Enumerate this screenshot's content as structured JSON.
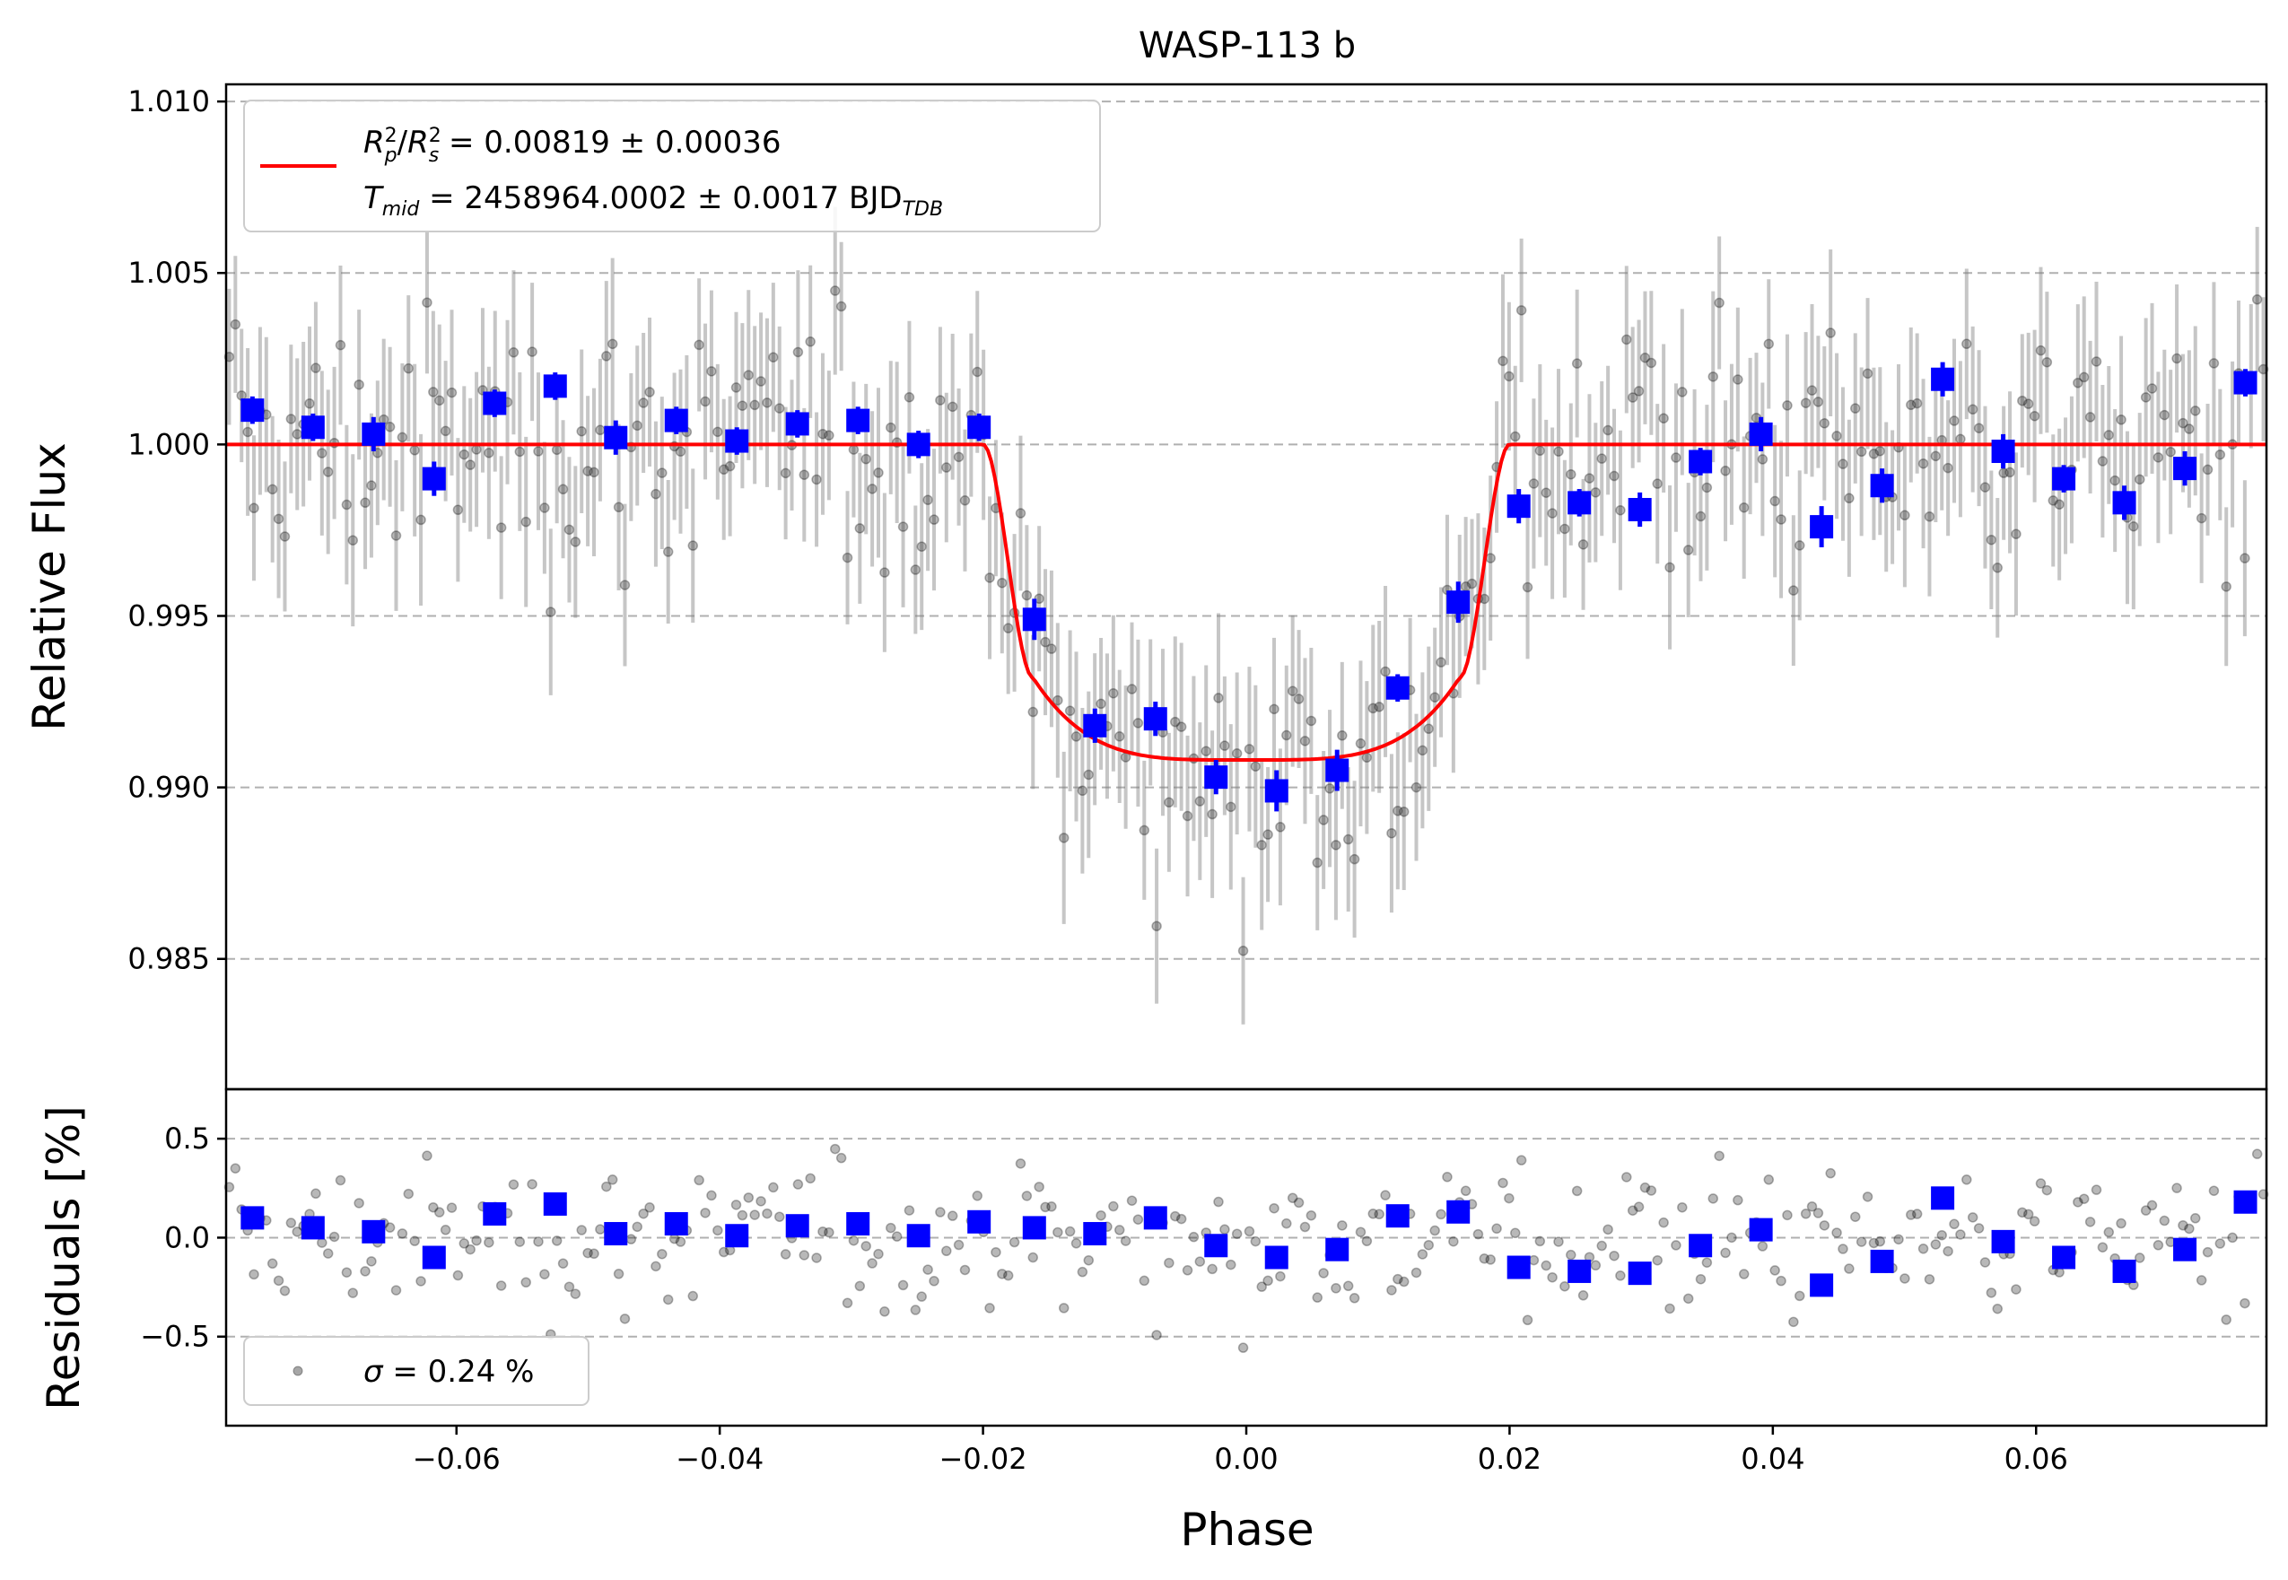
{
  "chart_data": [
    {
      "type": "scatter",
      "panel": "light-curve",
      "title": "WASP-113 b",
      "xlabel": "Phase",
      "ylabel": "Relative Flux",
      "xlim": [
        -0.0775,
        0.0775
      ],
      "ylim": [
        0.9812,
        1.0105
      ],
      "yticks": [
        0.985,
        0.99,
        0.995,
        1.0,
        1.005,
        1.01
      ],
      "ytick_labels": [
        "0.985",
        "0.990",
        "0.995",
        "1.000",
        "1.005",
        "1.010"
      ],
      "grid": "horizontal dashed",
      "legend": {
        "placement": "upper-left",
        "line1_main": "R",
        "line1_text": " = 0.00819 ± 0.00036",
        "line2_main": "T",
        "line2_sub": "mid",
        "line2_text": " = 2458964.0002 ± 0.0017 BJD",
        "line2_unit_sub": "TDB"
      },
      "model": {
        "name": "transit model",
        "color": "#ff0000",
        "depth": 0.00819,
        "t_mid_phase": 0.0,
        "ingress_start": -0.02,
        "ingress_end": -0.0162,
        "egress_start": 0.0162,
        "egress_end": 0.02,
        "bottom_flux": 0.9908,
        "contact_flux": 0.9932
      },
      "binned": {
        "color": "#0000ff",
        "x": [
          -0.0755,
          -0.0709,
          -0.0663,
          -0.0617,
          -0.0571,
          -0.0525,
          -0.0479,
          -0.0433,
          -0.0387,
          -0.0341,
          -0.0295,
          -0.0249,
          -0.0203,
          -0.0161,
          -0.0115,
          -0.0069,
          -0.0023,
          0.0023,
          0.0069,
          0.0115,
          0.0161,
          0.0207,
          0.0253,
          0.0299,
          0.0345,
          0.0391,
          0.0437,
          0.0483,
          0.0529,
          0.0575,
          0.0621,
          0.0667,
          0.0713,
          0.0759
        ],
        "y": [
          1.001,
          1.0005,
          1.0003,
          0.999,
          1.0012,
          1.0017,
          1.0002,
          1.0007,
          1.0001,
          1.0006,
          1.0007,
          1.0,
          1.0005,
          0.9949,
          0.9918,
          0.992,
          0.9903,
          0.9899,
          0.9905,
          0.9929,
          0.9954,
          0.9982,
          0.9983,
          0.9981,
          0.9995,
          1.0003,
          0.9976,
          0.9988,
          1.0019,
          0.9998,
          0.999,
          0.9983,
          0.9993,
          1.0018
        ],
        "err": [
          0.0004,
          0.0004,
          0.0005,
          0.0005,
          0.0004,
          0.0004,
          0.0005,
          0.0004,
          0.0004,
          0.0004,
          0.0004,
          0.0004,
          0.0004,
          0.0006,
          0.0005,
          0.0005,
          0.0005,
          0.0006,
          0.0006,
          0.0004,
          0.0006,
          0.0005,
          0.0004,
          0.0005,
          0.0004,
          0.0005,
          0.0006,
          0.0005,
          0.0005,
          0.0005,
          0.0004,
          0.0005,
          0.0005,
          0.0004
        ]
      },
      "raw": {
        "name": "unbinned data",
        "color": "#000000",
        "x_start": -0.0775,
        "x_end": 0.0775,
        "count": 330,
        "typical_error": 0.0022,
        "scatter_sigma_percent": 0.24
      }
    },
    {
      "type": "scatter",
      "panel": "residuals",
      "xlabel": "Phase",
      "ylabel": "Residuals [%]",
      "xlim": [
        -0.0775,
        0.0775
      ],
      "ylim": [
        -0.95,
        0.75
      ],
      "yticks": [
        -0.5,
        0.0,
        0.5
      ],
      "ytick_labels": [
        "−0.5",
        "0.0",
        "0.5"
      ],
      "xticks": [
        -0.06,
        -0.04,
        -0.02,
        0.0,
        0.02,
        0.04,
        0.06
      ],
      "xtick_labels": [
        "−0.06",
        "−0.04",
        "−0.02",
        "0.00",
        "0.02",
        "0.04",
        "0.06"
      ],
      "grid": "horizontal dashed",
      "legend": {
        "placement": "lower-left",
        "symbol": "σ",
        "text": " = 0.24 %"
      },
      "binned_residuals": [
        0.1,
        0.05,
        0.03,
        -0.1,
        0.12,
        0.17,
        0.02,
        0.07,
        0.01,
        0.06,
        0.07,
        0.01,
        0.08,
        0.05,
        0.02,
        0.1,
        -0.04,
        -0.1,
        -0.06,
        0.11,
        0.13,
        -0.15,
        -0.17,
        -0.18,
        -0.04,
        0.04,
        -0.24,
        -0.12,
        0.2,
        -0.02,
        -0.1,
        -0.17,
        -0.06,
        0.18
      ]
    }
  ]
}
